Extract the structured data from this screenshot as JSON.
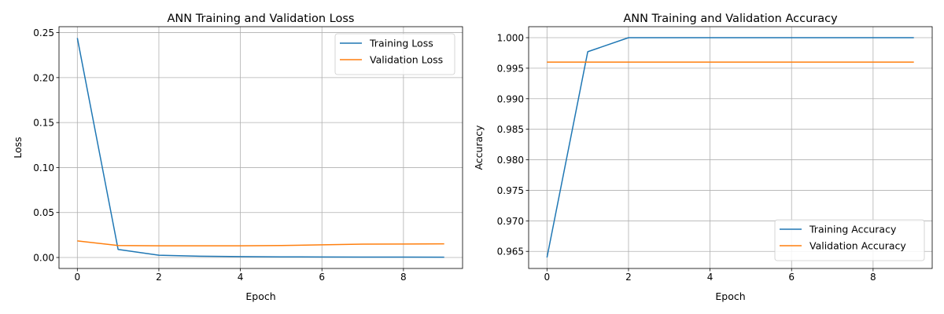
{
  "chart_data": [
    {
      "type": "line",
      "title": "ANN Training and Validation Loss",
      "xlabel": "Epoch",
      "ylabel": "Loss",
      "x": [
        0,
        1,
        2,
        3,
        4,
        5,
        6,
        7,
        8,
        9
      ],
      "xlim": [
        -0.45,
        9.45
      ],
      "ylim": [
        -0.0122,
        0.2566
      ],
      "xticks": [
        0,
        2,
        4,
        6,
        8
      ],
      "xtick_labels": [
        "0",
        "2",
        "4",
        "6",
        "8"
      ],
      "yticks": [
        0.0,
        0.05,
        0.1,
        0.15,
        0.2,
        0.25
      ],
      "ytick_labels": [
        "0.00",
        "0.05",
        "0.10",
        "0.15",
        "0.20",
        "0.25"
      ],
      "grid": true,
      "legend_position": "top-right",
      "series": [
        {
          "name": "Training Loss",
          "color": "#1f77b4",
          "values": [
            0.244,
            0.009,
            0.0025,
            0.0014,
            0.001,
            0.0007,
            0.0006,
            0.0005,
            0.0004,
            0.0003
          ]
        },
        {
          "name": "Validation Loss",
          "color": "#ff7f0e",
          "values": [
            0.0185,
            0.0133,
            0.013,
            0.013,
            0.013,
            0.0133,
            0.0141,
            0.0148,
            0.015,
            0.0152
          ]
        }
      ]
    },
    {
      "type": "line",
      "title": "ANN Training and Validation Accuracy",
      "xlabel": "Epoch",
      "ylabel": "Accuracy",
      "x": [
        0,
        1,
        2,
        3,
        4,
        5,
        6,
        7,
        8,
        9
      ],
      "xlim": [
        -0.45,
        9.45
      ],
      "ylim": [
        0.9622,
        1.0018
      ],
      "xticks": [
        0,
        2,
        4,
        6,
        8
      ],
      "xtick_labels": [
        "0",
        "2",
        "4",
        "6",
        "8"
      ],
      "yticks": [
        0.965,
        0.97,
        0.975,
        0.98,
        0.985,
        0.99,
        0.995,
        1.0
      ],
      "ytick_labels": [
        "0.965",
        "0.970",
        "0.975",
        "0.980",
        "0.985",
        "0.990",
        "0.995",
        "1.000"
      ],
      "grid": true,
      "legend_position": "bottom-right",
      "series": [
        {
          "name": "Training Accuracy",
          "color": "#1f77b4",
          "values": [
            0.964,
            0.9977,
            1.0,
            1.0,
            1.0,
            1.0,
            1.0,
            1.0,
            1.0,
            1.0
          ]
        },
        {
          "name": "Validation Accuracy",
          "color": "#ff7f0e",
          "values": [
            0.996,
            0.996,
            0.996,
            0.996,
            0.996,
            0.996,
            0.996,
            0.996,
            0.996,
            0.996
          ]
        }
      ]
    }
  ]
}
